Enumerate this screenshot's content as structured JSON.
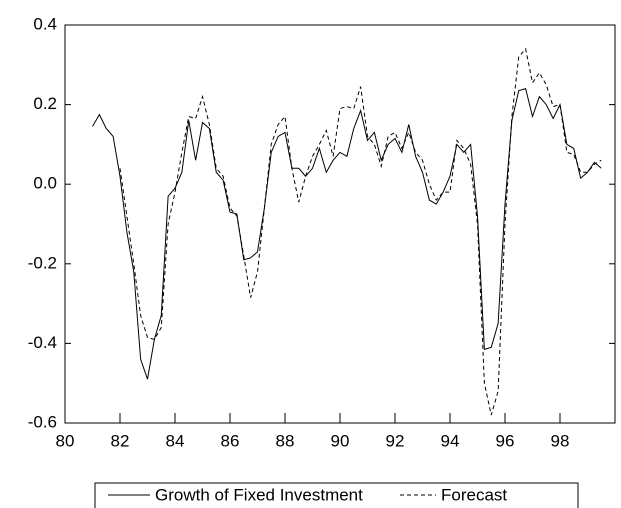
{
  "chart_data": {
    "type": "line",
    "x": [
      81,
      81.25,
      81.5,
      81.75,
      82,
      82.25,
      82.5,
      82.75,
      83,
      83.25,
      83.5,
      83.75,
      84,
      84.25,
      84.5,
      84.75,
      85,
      85.25,
      85.5,
      85.75,
      86,
      86.25,
      86.5,
      86.75,
      87,
      87.25,
      87.5,
      87.75,
      88,
      88.25,
      88.5,
      88.75,
      89,
      89.25,
      89.5,
      89.75,
      90,
      90.25,
      90.5,
      90.75,
      91,
      91.25,
      91.5,
      91.75,
      92,
      92.25,
      92.5,
      92.75,
      93,
      93.25,
      93.5,
      93.75,
      94,
      94.25,
      94.5,
      94.75,
      95,
      95.25,
      95.5,
      95.75,
      96,
      96.25,
      96.5,
      96.75,
      97,
      97.25,
      97.5,
      97.75,
      98,
      98.25,
      98.5,
      98.75,
      99,
      99.25,
      99.5
    ],
    "series": [
      {
        "name": "Growth of Fixed Investment",
        "color": "#000000",
        "dash": false,
        "values": [
          0.145,
          0.175,
          0.14,
          0.12,
          0.02,
          -0.12,
          -0.22,
          -0.44,
          -0.49,
          -0.39,
          -0.33,
          -0.03,
          -0.01,
          0.03,
          0.16,
          0.06,
          0.155,
          0.14,
          0.03,
          0.01,
          -0.07,
          -0.075,
          -0.19,
          -0.185,
          -0.17,
          -0.06,
          0.08,
          0.12,
          0.13,
          0.04,
          0.04,
          0.02,
          0.04,
          0.09,
          0.03,
          0.06,
          0.08,
          0.07,
          0.14,
          0.185,
          0.11,
          0.13,
          0.06,
          0.1,
          0.115,
          0.08,
          0.15,
          0.07,
          0.03,
          -0.04,
          -0.05,
          -0.02,
          0.02,
          0.1,
          0.08,
          0.1,
          -0.08,
          -0.415,
          -0.41,
          -0.35,
          -0.05,
          0.16,
          0.235,
          0.24,
          0.17,
          0.22,
          0.2,
          0.165,
          0.2,
          0.1,
          0.09,
          0.015,
          0.03,
          0.055,
          0.04
        ]
      },
      {
        "name": "Forecast",
        "color": "#000000",
        "dash": true,
        "values": [
          null,
          null,
          null,
          null,
          0.04,
          -0.08,
          -0.2,
          -0.33,
          -0.385,
          -0.39,
          -0.36,
          -0.1,
          -0.02,
          0.08,
          0.17,
          0.165,
          0.22,
          0.15,
          0.04,
          0.02,
          -0.06,
          -0.08,
          -0.18,
          -0.285,
          -0.22,
          -0.06,
          0.1,
          0.15,
          0.17,
          0.04,
          -0.045,
          0.02,
          0.07,
          0.1,
          0.135,
          0.07,
          0.19,
          0.195,
          0.19,
          0.245,
          0.12,
          0.1,
          0.045,
          0.12,
          0.13,
          0.09,
          0.13,
          0.08,
          0.06,
          0.0,
          -0.04,
          -0.02,
          -0.02,
          0.11,
          0.09,
          0.05,
          -0.1,
          -0.5,
          -0.58,
          -0.52,
          -0.1,
          0.17,
          0.32,
          0.34,
          0.255,
          0.28,
          0.25,
          0.195,
          0.2,
          0.08,
          0.075,
          0.03,
          0.03,
          0.05,
          0.06
        ]
      }
    ],
    "xlim": [
      80,
      100
    ],
    "xticks": [
      80,
      82,
      84,
      86,
      88,
      90,
      92,
      94,
      96,
      98
    ],
    "ylim": [
      -0.6,
      0.4
    ],
    "yticks": [
      0.4,
      0.2,
      {
        "value": 0,
        "label": "0.0"
      },
      -0.2,
      -0.4,
      -0.6
    ],
    "grid": false,
    "legend": "bottom"
  }
}
